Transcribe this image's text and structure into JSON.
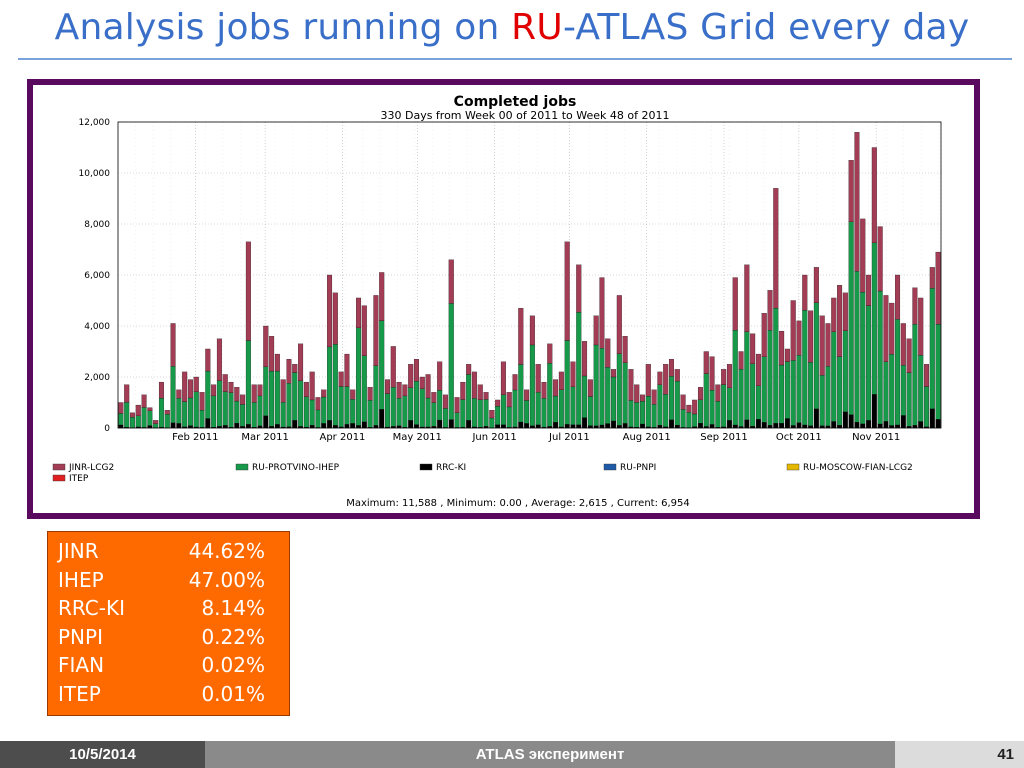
{
  "slide": {
    "title_part1": "Analysis jobs running on ",
    "title_accent": "RU",
    "title_part2": "-ATLAS Grid every day"
  },
  "colors": {
    "title": "#3a6fc9",
    "accent": "#e00000",
    "frame": "#5a0a5e",
    "share_box": "#ff6a00"
  },
  "chart_data": {
    "type": "bar",
    "stacked": true,
    "title": "Completed jobs",
    "subtitle": "330 Days from Week 00 of 2011 to Week 48 of 2011",
    "ylim": [
      0,
      12000
    ],
    "yticks": [
      "0",
      "2,000",
      "4,000",
      "6,000",
      "8,000",
      "10,000",
      "12,000"
    ],
    "x_month_labels": [
      "Feb 2011",
      "Mar 2011",
      "Apr 2011",
      "May 2011",
      "Jun 2011",
      "Jul 2011",
      "Aug 2011",
      "Sep 2011",
      "Oct 2011",
      "Nov 2011"
    ],
    "x_month_start_day": [
      31,
      59,
      90,
      120,
      151,
      181,
      212,
      243,
      273,
      304
    ],
    "days": 330,
    "grid": true,
    "legend_position": "bottom",
    "series": [
      {
        "name": "JINR-LCG2",
        "color": "#a33c55"
      },
      {
        "name": "RU-PROTVINO-IHEP",
        "color": "#169a4a"
      },
      {
        "name": "RRC-KI",
        "color": "#000000"
      },
      {
        "name": "RU-PNPI",
        "color": "#1e5aa8"
      },
      {
        "name": "RU-MOSCOW-FIAN-LCG2",
        "color": "#e5b800"
      },
      {
        "name": "ITEP",
        "color": "#e02020"
      }
    ],
    "totals_sampled_every_3_days": [
      1000,
      1700,
      600,
      900,
      1300,
      800,
      300,
      1800,
      700,
      4100,
      1500,
      2200,
      1900,
      2000,
      1400,
      3100,
      1700,
      3500,
      2100,
      1800,
      1600,
      1300,
      7300,
      1700,
      1700,
      4000,
      3600,
      2900,
      1900,
      2700,
      2500,
      3300,
      1800,
      2200,
      1200,
      1500,
      6000,
      5300,
      2200,
      2900,
      1500,
      5100,
      4800,
      1600,
      5200,
      6100,
      1900,
      3200,
      1800,
      1700,
      2500,
      2700,
      2000,
      2100,
      1400,
      2600,
      1300,
      6600,
      1200,
      1800,
      2500,
      2200,
      1700,
      1400,
      700,
      1100,
      2600,
      1400,
      2100,
      4700,
      1500,
      4400,
      2500,
      1800,
      3300,
      1900,
      2200,
      7300,
      2600,
      6400,
      3400,
      1900,
      4400,
      5900,
      3500,
      2300,
      5200,
      3600,
      2300,
      1700,
      1300,
      2500,
      1500,
      2200,
      2500,
      2700,
      2300,
      1300,
      900,
      1100,
      1600,
      3000,
      2800,
      1700,
      2300,
      2500,
      5900,
      3000,
      6400,
      3700,
      2900,
      4500,
      5400,
      9400,
      3800,
      3100,
      5000,
      4200,
      6000,
      4600,
      6300,
      4400,
      4100,
      5100,
      5600,
      5300,
      10500,
      11600,
      8200,
      6000,
      11000,
      7900,
      5200,
      4900,
      6000,
      4100,
      3500,
      5500,
      5100,
      2500,
      6300,
      6900
    ],
    "stats_line": "Maximum: 11,588 , Minimum: 0.00 , Average: 2,615 , Current: 6,954"
  },
  "shares": [
    {
      "name": "JINR",
      "pct": "44.62%"
    },
    {
      "name": "IHEP",
      "pct": "47.00%"
    },
    {
      "name": "RRC-KI",
      "pct": "8.14%"
    },
    {
      "name": "PNPI",
      "pct": "0.22%"
    },
    {
      "name": "FIAN",
      "pct": "0.02%"
    },
    {
      "name": "ITEP",
      "pct": "0.01%"
    }
  ],
  "footer": {
    "date": "10/5/2014",
    "center": "ATLAS эксперимент",
    "page": "41"
  }
}
